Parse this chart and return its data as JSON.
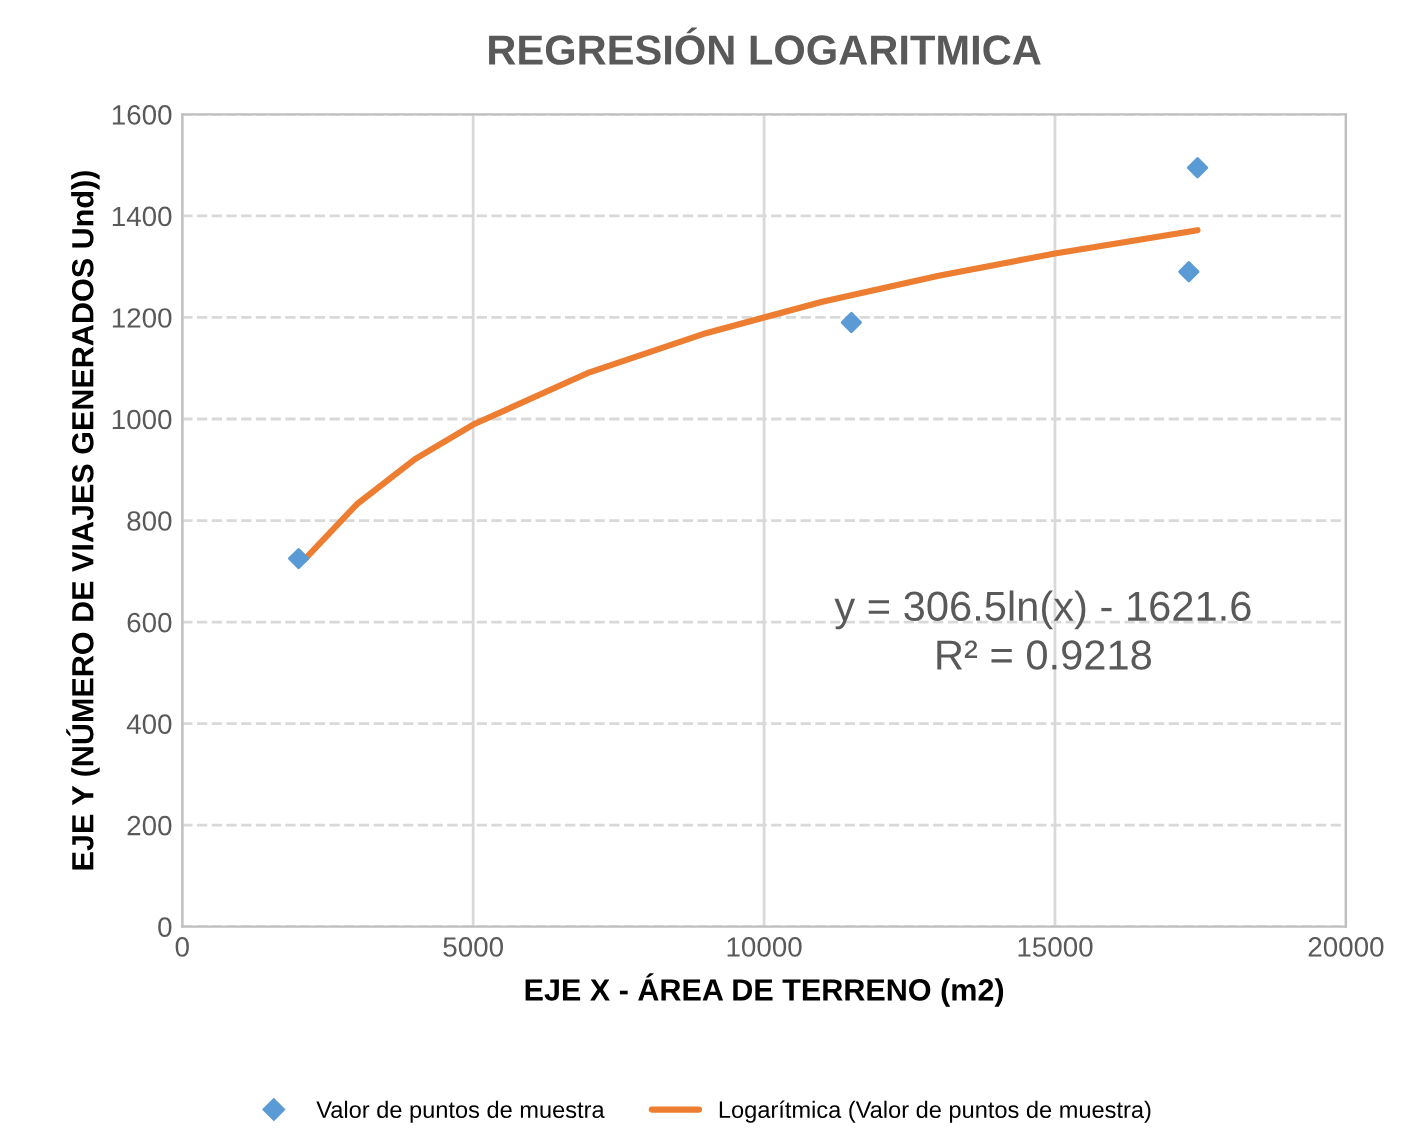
{
  "chart_data": {
    "type": "scatter",
    "title": "REGRESIÓN LOGARITMICA",
    "xlabel": "EJE X - ÁREA DE TERRENO (m2)",
    "ylabel": "EJE Y (NÚMERO DE VIAJES GENERADOS Und))",
    "series": [
      {
        "name": "Valor de puntos de muestra",
        "marker": "diamond",
        "color": "#5b9bd5",
        "x": [
          2000,
          11500,
          17300,
          17450
        ],
        "values": [
          725,
          1190,
          1290,
          1495
        ]
      },
      {
        "name": "Logarítmica (Valor de puntos de muestra)",
        "type": "line",
        "marker": "none",
        "color": "#ed7d31",
        "x": [
          2100,
          3000,
          4000,
          5000,
          7000,
          9000,
          11000,
          13000,
          15000,
          17450
        ],
        "values": [
          723,
          832,
          921,
          989,
          1092,
          1169,
          1231,
          1282,
          1326,
          1372
        ]
      }
    ],
    "annotations": [
      "y = 306.5ln(x) - 1621.6",
      "R² = 0.9218"
    ],
    "xlim": [
      0,
      20000
    ],
    "xticks": [
      0,
      5000,
      10000,
      15000,
      20000
    ],
    "ylim": [
      0,
      1600
    ],
    "yticks": [
      0,
      200,
      400,
      600,
      800,
      1000,
      1200,
      1400,
      1600
    ],
    "grid": true,
    "legend": "bottom"
  }
}
